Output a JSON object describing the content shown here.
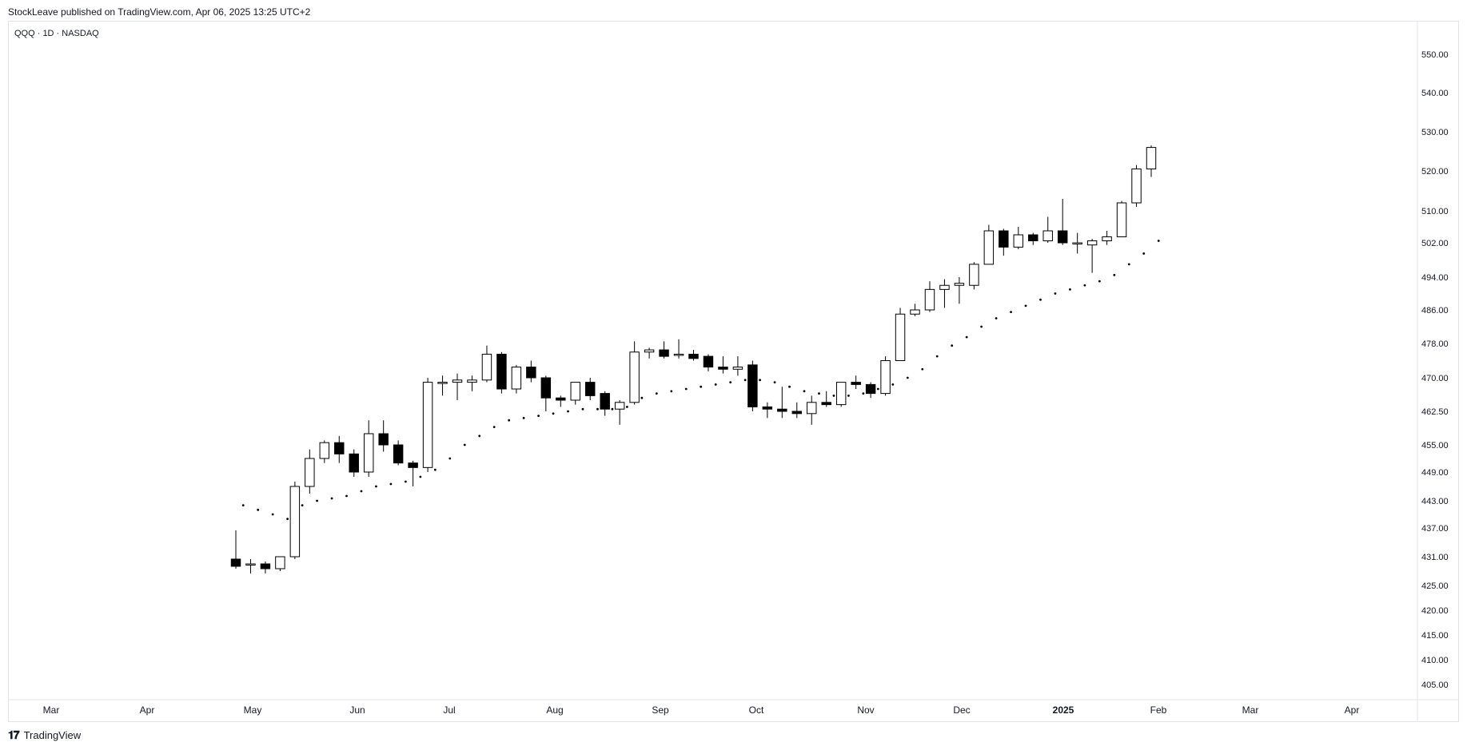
{
  "header": {
    "text": "StockLeave published on TradingView.com, Apr 06, 2025 13:25 UTC+2"
  },
  "symbol": {
    "text": "QQQ · 1D · NASDAQ"
  },
  "footer": {
    "logo_icon": "tradingview-logo-icon",
    "text": "TradingView"
  },
  "colors": {
    "up_fill": "#ffffff",
    "down_fill": "#000000",
    "outline": "#000000",
    "axis_text": "#131722",
    "border": "#e0e3eb"
  },
  "chart_data": {
    "type": "candlestick",
    "y_ticks": [
      "550.00",
      "540.00",
      "530.00",
      "520.00",
      "510.00",
      "502.00",
      "494.00",
      "486.00",
      "478.00",
      "470.00",
      "462.50",
      "455.00",
      "449.00",
      "443.00",
      "437.00",
      "431.00",
      "425.00",
      "420.00",
      "415.00",
      "410.00",
      "405.00"
    ],
    "x_ticks": [
      "Mar",
      "Apr",
      "May",
      "Jun",
      "Jul",
      "Aug",
      "Sep",
      "Oct",
      "Nov",
      "Dec",
      "2025",
      "Feb",
      "Mar",
      "Apr"
    ],
    "candles": [
      {
        "o": 430.5,
        "h": 436.5,
        "l": 428.5,
        "c": 429.0
      },
      {
        "o": 429.5,
        "h": 430.5,
        "l": 427.5,
        "c": 429.5
      },
      {
        "o": 429.5,
        "h": 430.0,
        "l": 427.5,
        "c": 428.5
      },
      {
        "o": 428.5,
        "h": 431.0,
        "l": 428.0,
        "c": 431.0
      },
      {
        "o": 431.0,
        "h": 447.0,
        "l": 430.5,
        "c": 446.0
      },
      {
        "o": 446.0,
        "h": 454.0,
        "l": 444.5,
        "c": 452.0
      },
      {
        "o": 452.0,
        "h": 456.0,
        "l": 451.0,
        "c": 455.5
      },
      {
        "o": 455.5,
        "h": 457.0,
        "l": 451.0,
        "c": 453.0
      },
      {
        "o": 453.0,
        "h": 454.0,
        "l": 448.0,
        "c": 449.0
      },
      {
        "o": 449.0,
        "h": 460.5,
        "l": 448.0,
        "c": 457.5
      },
      {
        "o": 457.5,
        "h": 460.5,
        "l": 453.5,
        "c": 455.0
      },
      {
        "o": 455.0,
        "h": 456.0,
        "l": 450.5,
        "c": 451.0
      },
      {
        "o": 451.0,
        "h": 451.5,
        "l": 446.0,
        "c": 450.0
      },
      {
        "o": 450.0,
        "h": 470.0,
        "l": 449.0,
        "c": 469.0
      },
      {
        "o": 469.0,
        "h": 470.5,
        "l": 466.0,
        "c": 469.0
      },
      {
        "o": 469.0,
        "h": 471.0,
        "l": 465.0,
        "c": 469.5
      },
      {
        "o": 469.0,
        "h": 470.5,
        "l": 467.0,
        "c": 469.5
      },
      {
        "o": 469.5,
        "h": 477.5,
        "l": 469.0,
        "c": 475.5
      },
      {
        "o": 475.5,
        "h": 476.0,
        "l": 466.5,
        "c": 467.5
      },
      {
        "o": 467.5,
        "h": 473.0,
        "l": 466.5,
        "c": 472.5
      },
      {
        "o": 472.5,
        "h": 474.0,
        "l": 469.0,
        "c": 470.0
      },
      {
        "o": 470.0,
        "h": 470.5,
        "l": 462.5,
        "c": 465.5
      },
      {
        "o": 465.5,
        "h": 466.0,
        "l": 463.5,
        "c": 465.0
      },
      {
        "o": 465.0,
        "h": 469.0,
        "l": 464.0,
        "c": 469.0
      },
      {
        "o": 469.0,
        "h": 470.0,
        "l": 465.0,
        "c": 466.0
      },
      {
        "o": 466.5,
        "h": 467.0,
        "l": 461.5,
        "c": 463.0
      },
      {
        "o": 463.0,
        "h": 465.0,
        "l": 459.5,
        "c": 464.5
      },
      {
        "o": 464.5,
        "h": 478.5,
        "l": 464.0,
        "c": 476.0
      },
      {
        "o": 476.0,
        "h": 477.0,
        "l": 474.5,
        "c": 476.5
      },
      {
        "o": 476.5,
        "h": 478.5,
        "l": 474.5,
        "c": 475.0
      },
      {
        "o": 475.5,
        "h": 479.0,
        "l": 474.5,
        "c": 475.5
      },
      {
        "o": 475.5,
        "h": 476.5,
        "l": 474.0,
        "c": 474.5
      },
      {
        "o": 475.0,
        "h": 475.5,
        "l": 471.5,
        "c": 472.5
      },
      {
        "o": 472.5,
        "h": 475.0,
        "l": 471.0,
        "c": 472.0
      },
      {
        "o": 472.0,
        "h": 475.0,
        "l": 470.5,
        "c": 472.5
      },
      {
        "o": 473.0,
        "h": 474.0,
        "l": 462.5,
        "c": 463.5
      },
      {
        "o": 463.5,
        "h": 464.5,
        "l": 461.0,
        "c": 463.0
      },
      {
        "o": 463.0,
        "h": 468.0,
        "l": 461.0,
        "c": 462.5
      },
      {
        "o": 462.5,
        "h": 464.5,
        "l": 461.0,
        "c": 462.0
      },
      {
        "o": 462.0,
        "h": 466.0,
        "l": 459.5,
        "c": 464.5
      },
      {
        "o": 464.5,
        "h": 467.0,
        "l": 463.5,
        "c": 464.0
      },
      {
        "o": 464.0,
        "h": 469.0,
        "l": 463.5,
        "c": 469.0
      },
      {
        "o": 469.0,
        "h": 470.5,
        "l": 467.5,
        "c": 468.5
      },
      {
        "o": 468.5,
        "h": 469.0,
        "l": 465.5,
        "c": 466.5
      },
      {
        "o": 466.5,
        "h": 475.0,
        "l": 466.0,
        "c": 474.0
      },
      {
        "o": 474.0,
        "h": 486.5,
        "l": 474.0,
        "c": 485.0
      },
      {
        "o": 485.0,
        "h": 487.5,
        "l": 484.5,
        "c": 486.0
      },
      {
        "o": 486.0,
        "h": 493.0,
        "l": 485.5,
        "c": 491.0
      },
      {
        "o": 491.0,
        "h": 493.5,
        "l": 486.5,
        "c": 492.0
      },
      {
        "o": 492.0,
        "h": 494.0,
        "l": 487.5,
        "c": 492.5
      },
      {
        "o": 492.0,
        "h": 497.5,
        "l": 491.0,
        "c": 497.0
      },
      {
        "o": 497.0,
        "h": 506.5,
        "l": 497.0,
        "c": 505.0
      },
      {
        "o": 505.0,
        "h": 505.5,
        "l": 499.0,
        "c": 501.0
      },
      {
        "o": 501.0,
        "h": 506.0,
        "l": 500.5,
        "c": 504.0
      },
      {
        "o": 504.0,
        "h": 504.5,
        "l": 501.5,
        "c": 502.5
      },
      {
        "o": 502.5,
        "h": 508.5,
        "l": 502.0,
        "c": 505.0
      },
      {
        "o": 505.0,
        "h": 513.0,
        "l": 501.5,
        "c": 502.0
      },
      {
        "o": 502.0,
        "h": 504.5,
        "l": 499.5,
        "c": 502.0
      },
      {
        "o": 501.5,
        "h": 503.0,
        "l": 495.0,
        "c": 502.5
      },
      {
        "o": 502.5,
        "h": 505.0,
        "l": 501.5,
        "c": 503.5
      },
      {
        "o": 503.5,
        "h": 512.5,
        "l": 503.5,
        "c": 512.0
      },
      {
        "o": 512.0,
        "h": 521.5,
        "l": 511.0,
        "c": 520.5
      },
      {
        "o": 520.5,
        "h": 526.5,
        "l": 518.5,
        "c": 526.0
      }
    ],
    "sar": [
      442.0,
      441.0,
      440.0,
      439.0,
      442.0,
      443.0,
      443.5,
      444.0,
      445.0,
      446.0,
      446.5,
      447.0,
      448.0,
      449.5,
      452.0,
      455.0,
      457.0,
      459.0,
      460.5,
      461.0,
      461.5,
      462.0,
      462.5,
      463.0,
      463.0,
      463.0,
      463.5,
      465.5,
      466.5,
      467.0,
      467.5,
      468.0,
      468.5,
      469.0,
      469.5,
      469.5,
      469.0,
      468.0,
      467.0,
      466.5,
      466.0,
      466.0,
      466.5,
      467.5,
      468.5,
      470.0,
      472.0,
      475.0,
      477.5,
      479.5,
      482.0,
      484.0,
      485.5,
      487.0,
      488.5,
      490.0,
      491.0,
      492.0,
      493.0,
      494.5,
      497.0,
      499.5,
      502.5
    ]
  }
}
